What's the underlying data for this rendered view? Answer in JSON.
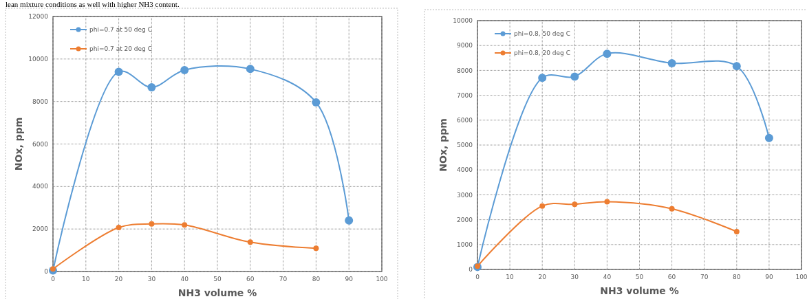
{
  "chart_data": [
    {
      "type": "line",
      "annotations": [
        "lean mixture conditions as well with higher NH3 content."
      ],
      "xlabel": "NH3 volume %",
      "ylabel": "NOx, ppm",
      "xlim": [
        0,
        100
      ],
      "xticks": [
        0,
        10,
        20,
        30,
        40,
        50,
        60,
        70,
        80,
        90,
        100
      ],
      "ylim": [
        0,
        12000
      ],
      "yticks": [
        0,
        2000,
        4000,
        6000,
        8000,
        10000,
        12000
      ],
      "grid": true,
      "legend": "top left",
      "marker": "circle",
      "series": [
        {
          "name": "phi=0.7 at 50 deg C",
          "color": "#5b9bd5",
          "x": [
            0,
            20,
            30,
            40,
            60,
            80,
            90
          ],
          "values": [
            50,
            9400,
            8670,
            9480,
            9530,
            7960,
            2400
          ]
        },
        {
          "name": "phi=0.7 at 20 deg C",
          "color": "#ed7d31",
          "x": [
            0,
            20,
            30,
            40,
            60,
            80
          ],
          "values": [
            120,
            2070,
            2240,
            2190,
            1380,
            1090
          ]
        }
      ]
    },
    {
      "type": "line",
      "xlabel": "NH3 volume %",
      "ylabel": "NOx, ppm",
      "xlim": [
        0,
        100
      ],
      "xticks": [
        0,
        10,
        20,
        30,
        40,
        50,
        60,
        70,
        80,
        90,
        100
      ],
      "ylim": [
        0,
        10000
      ],
      "yticks": [
        0,
        1000,
        2000,
        3000,
        4000,
        5000,
        6000,
        7000,
        8000,
        9000,
        10000
      ],
      "grid": true,
      "legend": "top left",
      "marker": "circle",
      "series": [
        {
          "name": "phi=0.8, 50 deg C",
          "color": "#5b9bd5",
          "x": [
            0,
            20,
            30,
            40,
            60,
            80,
            90
          ],
          "values": [
            100,
            7700,
            7750,
            8670,
            8290,
            8170,
            5280
          ]
        },
        {
          "name": "phi=0.8, 20 deg C",
          "color": "#ed7d31",
          "x": [
            0,
            20,
            30,
            40,
            60,
            80
          ],
          "values": [
            130,
            2550,
            2620,
            2720,
            2440,
            1520
          ]
        }
      ]
    }
  ]
}
